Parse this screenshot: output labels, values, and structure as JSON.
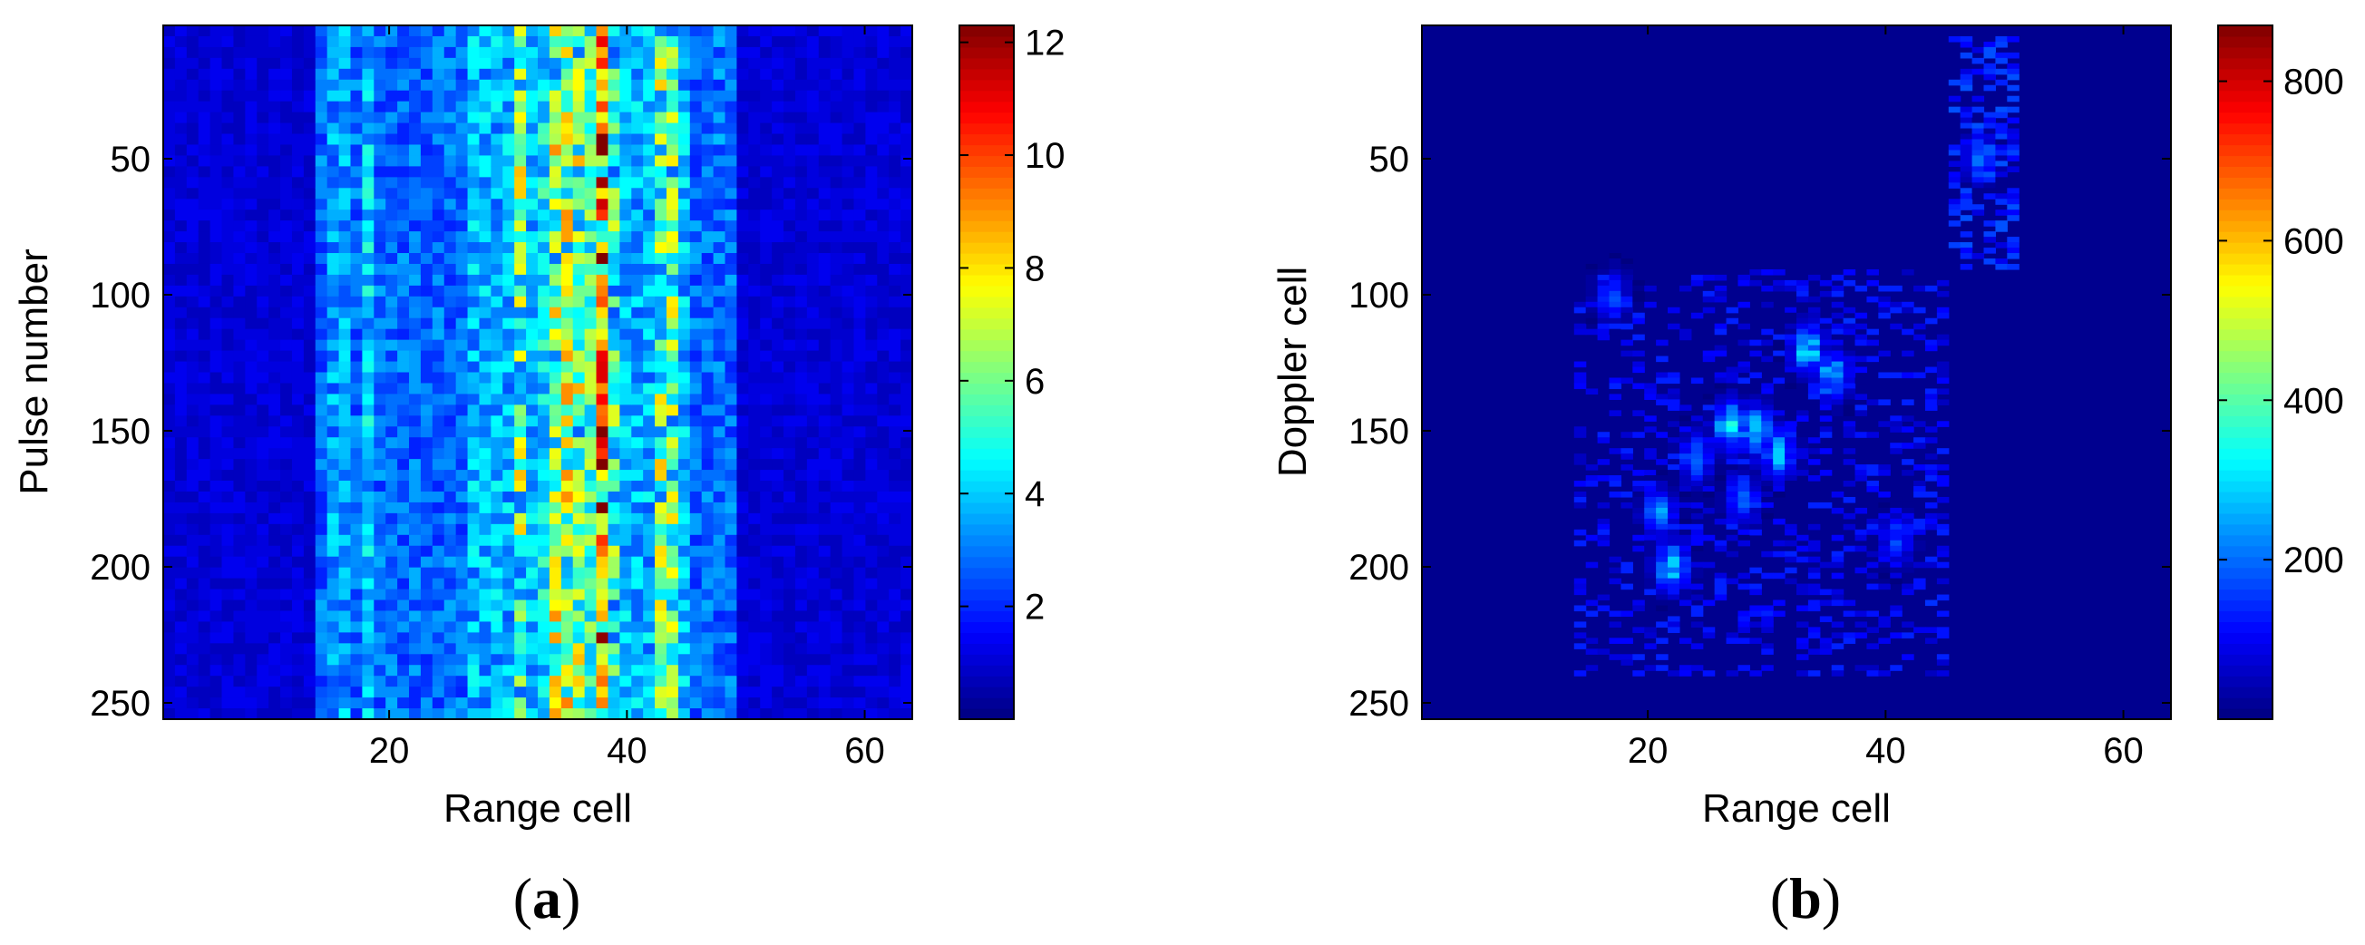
{
  "chart_data": [
    {
      "type": "heatmap",
      "panel_label": "(a)",
      "xlabel": "Range cell",
      "ylabel": "Pulse number",
      "xlim": [
        1,
        64
      ],
      "ylim": [
        256,
        1
      ],
      "y_reversed": true,
      "xticks": [
        20,
        40,
        60
      ],
      "yticks": [
        50,
        100,
        150,
        200,
        250
      ],
      "colorbar": {
        "colormap": "jet",
        "clim": [
          0,
          12.3
        ],
        "ticks": [
          2,
          4,
          6,
          8,
          10,
          12
        ]
      },
      "columns": [
        {
          "range_cell": 15.5,
          "level": 4.2
        },
        {
          "range_cell": 16.3,
          "level": 3.8
        },
        {
          "range_cell": 18.2,
          "level": 4.3
        },
        {
          "range_cell": 23.5,
          "level": 3.0
        },
        {
          "range_cell": 28.5,
          "level": 4.6
        },
        {
          "range_cell": 31.0,
          "level": 7.0
        },
        {
          "range_cell": 33.0,
          "level": 4.8
        },
        {
          "range_cell": 34.5,
          "level": 10.0
        },
        {
          "range_cell": 36.3,
          "level": 8.5
        },
        {
          "range_cell": 38.0,
          "level": 11.0
        },
        {
          "range_cell": 40.0,
          "level": 4.2
        },
        {
          "range_cell": 41.5,
          "level": 3.2
        },
        {
          "range_cell": 43.3,
          "level": 9.0
        },
        {
          "range_cell": 44.5,
          "level": 4.0
        },
        {
          "range_cell": 48.0,
          "level": 3.6
        }
      ],
      "background_level": 1.2
    },
    {
      "type": "heatmap",
      "panel_label": "(b)",
      "xlabel": "Range cell",
      "ylabel": "Doppler cell",
      "xlim": [
        1,
        64
      ],
      "ylim": [
        256,
        1
      ],
      "y_reversed": true,
      "xticks": [
        20,
        40,
        60
      ],
      "yticks": [
        50,
        100,
        150,
        200,
        250
      ],
      "colorbar": {
        "colormap": "jet",
        "clim": [
          0,
          870
        ],
        "ticks": [
          200,
          400,
          600,
          800
        ]
      },
      "blobs": [
        {
          "range_cell": 48.0,
          "doppler_cell": 50,
          "level": 230
        },
        {
          "range_cell": 33.5,
          "doppler_cell": 120,
          "level": 330
        },
        {
          "range_cell": 35.5,
          "doppler_cell": 130,
          "level": 300
        },
        {
          "range_cell": 27.0,
          "doppler_cell": 148,
          "level": 360
        },
        {
          "range_cell": 29.0,
          "doppler_cell": 150,
          "level": 330
        },
        {
          "range_cell": 31.0,
          "doppler_cell": 158,
          "level": 310
        },
        {
          "range_cell": 22.0,
          "doppler_cell": 200,
          "level": 330
        },
        {
          "range_cell": 21.0,
          "doppler_cell": 180,
          "level": 260
        },
        {
          "range_cell": 24.0,
          "doppler_cell": 160,
          "level": 250
        },
        {
          "range_cell": 17.0,
          "doppler_cell": 100,
          "level": 200
        },
        {
          "range_cell": 41.0,
          "doppler_cell": 190,
          "level": 200
        },
        {
          "range_cell": 28.0,
          "doppler_cell": 175,
          "level": 220
        }
      ],
      "background_level": 10
    }
  ]
}
